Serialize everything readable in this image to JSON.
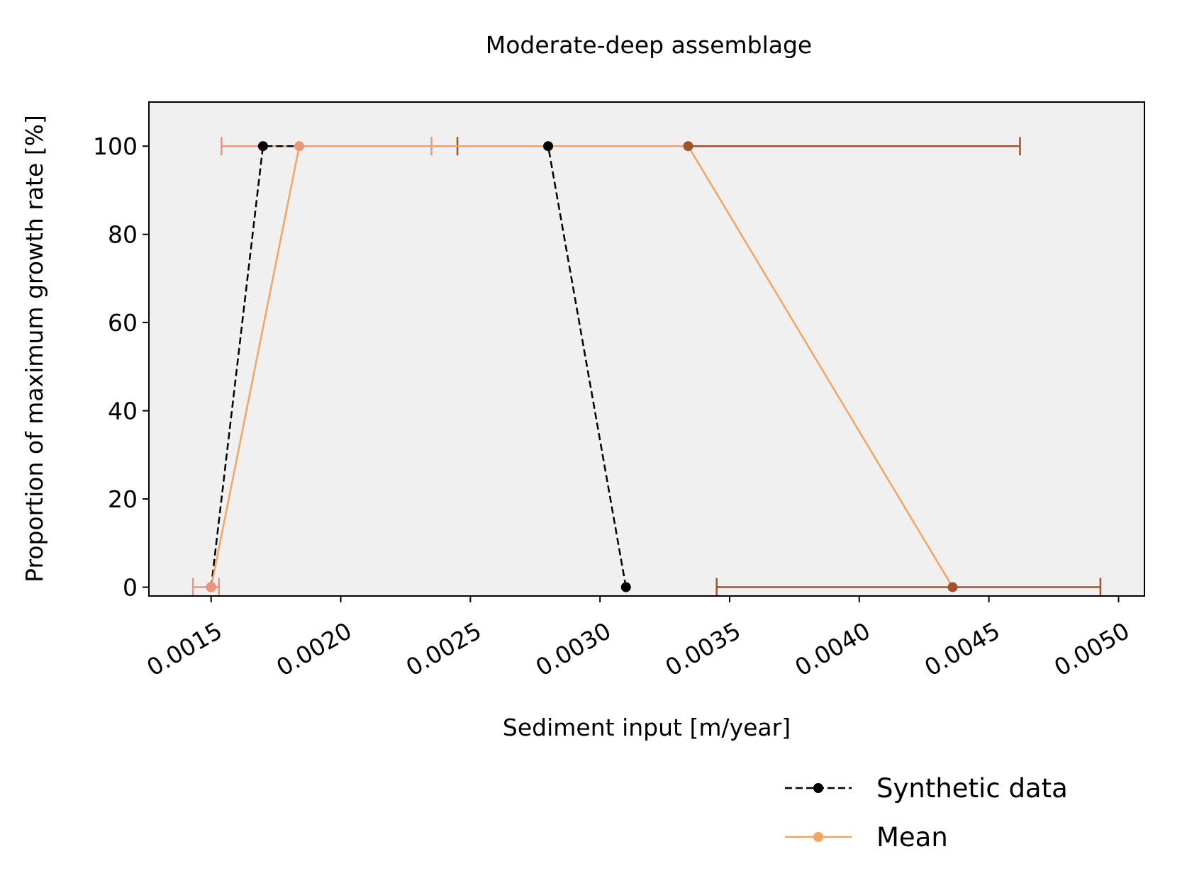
{
  "chart_data": {
    "type": "line",
    "title": "Moderate-deep assemblage",
    "xlabel": "Sediment input [m/year]",
    "ylabel": "Proportion of maximum growth rate [%]",
    "xlim": [
      0.00126,
      0.0051
    ],
    "ylim": [
      -2,
      110
    ],
    "xticks": [
      "0.0015",
      "0.0020",
      "0.0025",
      "0.0030",
      "0.0035",
      "0.0040",
      "0.0045",
      "0.0050"
    ],
    "xtick_values": [
      0.0015,
      0.002,
      0.0025,
      0.003,
      0.0035,
      0.004,
      0.0045,
      0.005
    ],
    "yticks": [
      "0",
      "20",
      "40",
      "60",
      "80",
      "100"
    ],
    "ytick_values": [
      0,
      20,
      40,
      60,
      80,
      100
    ],
    "grid": false,
    "plot_background": "#f0f0f0",
    "legend_position": "below-right",
    "series": [
      {
        "name": "Synthetic data",
        "color": "#000000",
        "linestyle": "dashed",
        "marker": "circle",
        "x": [
          0.0015,
          0.0017,
          0.0028,
          0.0031
        ],
        "y": [
          0,
          100,
          100,
          0
        ]
      },
      {
        "name": "Mean",
        "color": "#f4a460",
        "linestyle": "solid",
        "marker": "circle",
        "x": [
          0.0015,
          0.00184,
          0.00334,
          0.00436
        ],
        "y": [
          0,
          100,
          100,
          0
        ],
        "marker_colors": [
          "#e9967a",
          "#e9967a",
          "#a0522d",
          "#a0522d"
        ],
        "error_bars": [
          {
            "x": 0.0015,
            "y": 0,
            "xmin": 0.00143,
            "xmax": 0.00153,
            "color": "#e9967a"
          },
          {
            "x": 0.00184,
            "y": 100,
            "xmin": 0.00154,
            "xmax": 0.00235,
            "color": "#e9967a"
          },
          {
            "x": 0.00334,
            "y": 100,
            "xmin": 0.00245,
            "xmax": 0.00462,
            "color": "#a0522d"
          },
          {
            "x": 0.00436,
            "y": 0,
            "xmin": 0.00345,
            "xmax": 0.00493,
            "color": "#a0522d"
          }
        ]
      }
    ]
  }
}
